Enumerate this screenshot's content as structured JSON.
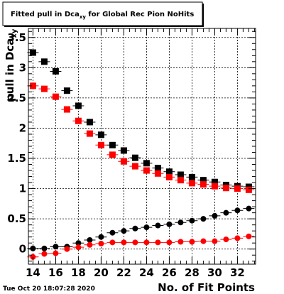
{
  "chart_data": {
    "type": "scatter",
    "title_main": "Fitted pull in Dca",
    "title_sub": "xy",
    "title_rest": " for Global Rec Pion NoHits",
    "xlabel": "No. of Fit Points",
    "ylabel_main": "pull in Dca",
    "ylabel_sub": "xy",
    "xlim": [
      13.6,
      33.6
    ],
    "ylim": [
      -0.25,
      3.65
    ],
    "x_ticks": [
      14,
      16,
      18,
      20,
      22,
      24,
      26,
      28,
      30,
      32
    ],
    "y_ticks": [
      0,
      0.5,
      1,
      1.5,
      2,
      2.5,
      3,
      3.5
    ],
    "x_tick_labels": [
      "14",
      "16",
      "18",
      "20",
      "22",
      "24",
      "26",
      "28",
      "30",
      "32"
    ],
    "y_tick_labels": [
      "0",
      "0.5",
      "1",
      "1.5",
      "2",
      "2.5",
      "3",
      "3.5"
    ],
    "grid": true,
    "x": [
      14,
      15,
      16,
      17,
      18,
      19,
      20,
      21,
      22,
      23,
      24,
      25,
      26,
      27,
      28,
      29,
      30,
      31,
      32,
      33
    ],
    "series": [
      {
        "marker": "square",
        "color": "#000000",
        "values": [
          3.25,
          3.1,
          2.94,
          2.62,
          2.37,
          2.1,
          1.89,
          1.72,
          1.63,
          1.51,
          1.42,
          1.34,
          1.28,
          1.23,
          1.19,
          1.14,
          1.11,
          1.06,
          1.04,
          1.03
        ]
      },
      {
        "marker": "square",
        "color": "#ff0000",
        "values": [
          2.7,
          2.65,
          2.52,
          2.31,
          2.12,
          1.91,
          1.72,
          1.56,
          1.45,
          1.37,
          1.3,
          1.25,
          1.19,
          1.14,
          1.09,
          1.07,
          1.04,
          1.01,
          1.0,
          0.98
        ]
      },
      {
        "marker": "circle",
        "color": "#000000",
        "values": [
          0.01,
          0.01,
          0.04,
          0.04,
          0.1,
          0.15,
          0.2,
          0.27,
          0.3,
          0.34,
          0.36,
          0.39,
          0.41,
          0.44,
          0.47,
          0.5,
          0.55,
          0.6,
          0.64,
          0.67
        ]
      },
      {
        "marker": "circle",
        "color": "#ff0000",
        "values": [
          -0.13,
          -0.08,
          -0.07,
          0.0,
          0.03,
          0.07,
          0.09,
          0.11,
          0.11,
          0.11,
          0.11,
          0.11,
          0.11,
          0.12,
          0.12,
          0.13,
          0.13,
          0.16,
          0.18,
          0.21
        ]
      }
    ]
  },
  "footer": {
    "timestamp": "Tue Oct 20 18:07:28 2020"
  }
}
